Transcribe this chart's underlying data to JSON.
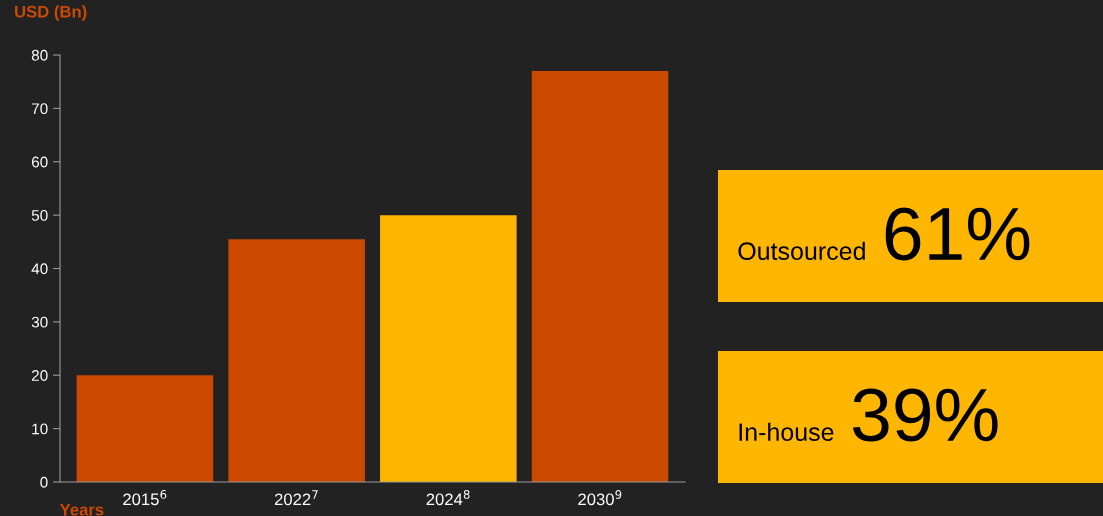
{
  "chart_data": [
    {
      "type": "bar",
      "xlabel": "Years",
      "ylabel": "USD (Bn)",
      "categories": [
        "2015$^{6}$",
        "2022$^{7}$",
        "2024$^{8}$",
        "2030$^{9}$"
      ],
      "values": [
        20,
        45.5,
        50,
        77
      ],
      "colors": [
        "#cc4a00",
        "#cc4a00",
        "#ffb600",
        "#cc4a00"
      ],
      "ylim": [
        0,
        80
      ],
      "yticks": [
        0,
        10,
        20,
        30,
        40,
        50,
        60,
        70,
        80
      ],
      "grid": false,
      "legend": false
    },
    {
      "type": "other",
      "annotations": [
        "Outsourced",
        "61%",
        "In-house",
        "39%"
      ],
      "color": "#ffb600"
    }
  ]
}
